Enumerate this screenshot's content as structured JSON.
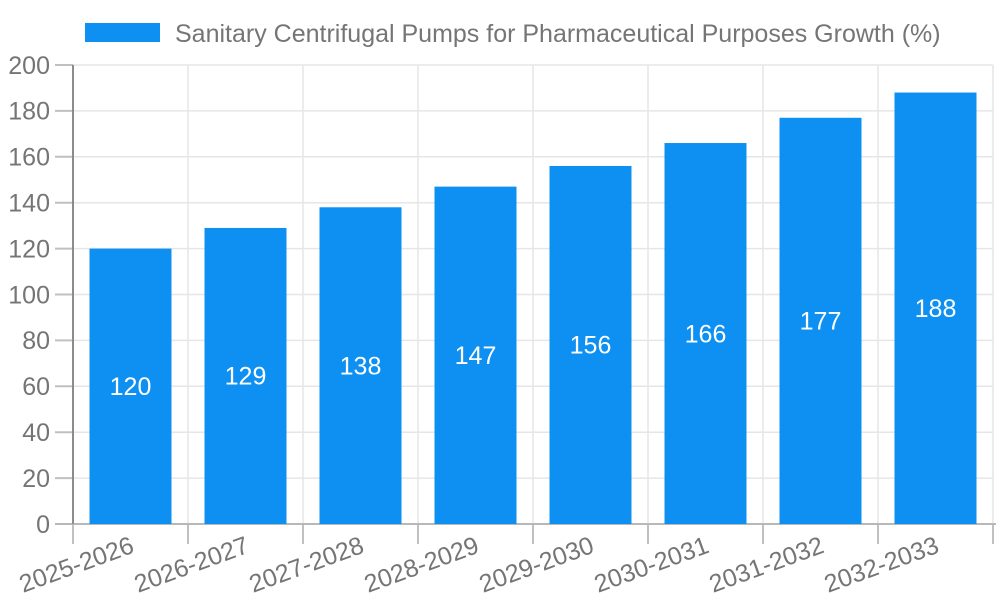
{
  "chart": {
    "legend_label": "Sanitary Centrifugal Pumps for Pharmaceutical Purposes Growth (%)"
  },
  "chart_data": {
    "type": "bar",
    "title": "",
    "categories": [
      "2025-2026",
      "2026-2027",
      "2027-2028",
      "2028-2029",
      "2029-2030",
      "2030-2031",
      "2031-2032",
      "2032-2033"
    ],
    "values": [
      120,
      129,
      138,
      147,
      156,
      166,
      177,
      188
    ],
    "series": [
      {
        "name": "Sanitary Centrifugal Pumps for Pharmaceutical Purposes Growth (%)",
        "values": [
          120,
          129,
          138,
          147,
          156,
          166,
          177,
          188
        ]
      }
    ],
    "xlabel": "",
    "ylabel": "",
    "ylim": [
      0,
      200
    ],
    "yticks": [
      0,
      20,
      40,
      60,
      80,
      100,
      120,
      140,
      160,
      180,
      200
    ],
    "grid": true,
    "legend_position": "top-left",
    "x_label_rotation_deg": -20,
    "value_labels": "inside-center",
    "colors": {
      "bar": "#0d90f2",
      "bar_value_text": "#ffffff",
      "axis_text": "#757575",
      "grid_line": "#e6e6e6",
      "y_axis_line": "#8c8c8c",
      "x_axis_line": "#b8b8b8",
      "tick": "#c0c0c0",
      "background": "#ffffff"
    }
  }
}
